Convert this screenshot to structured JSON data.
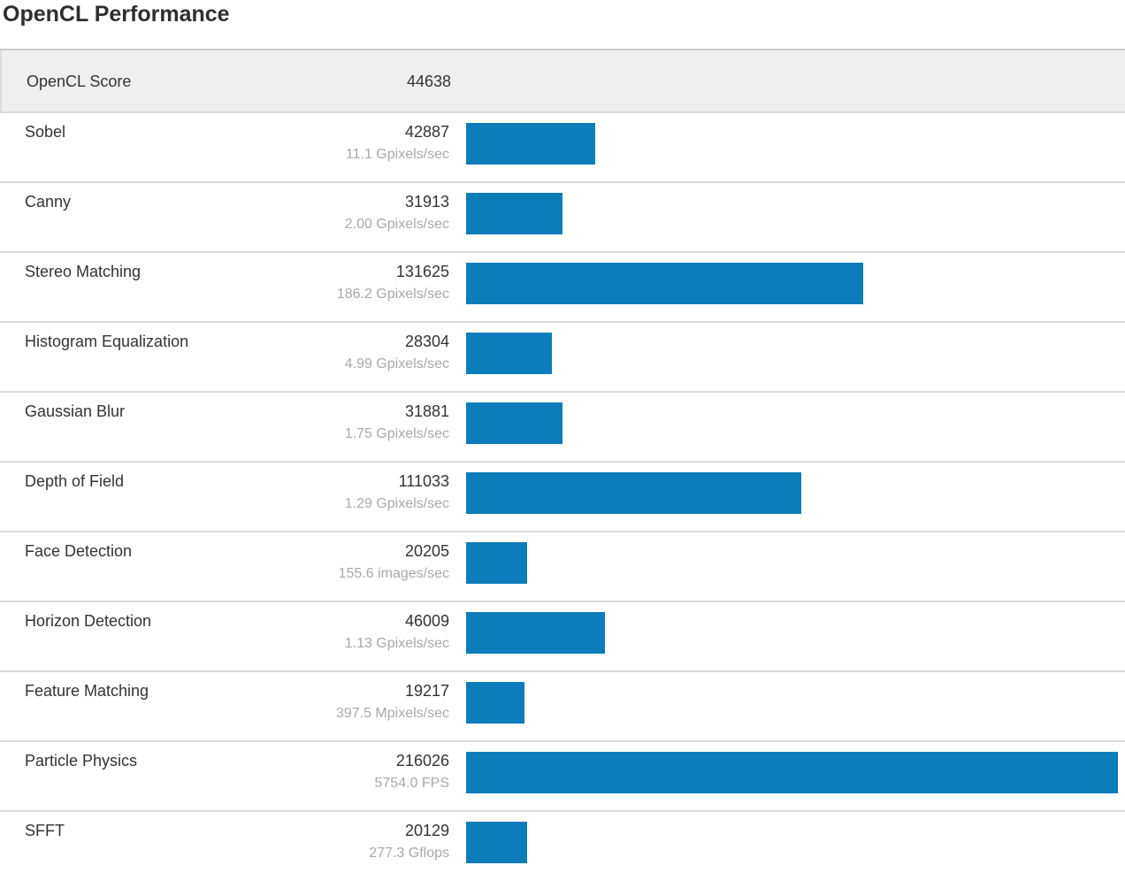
{
  "page": {
    "title": "OpenCL Performance"
  },
  "colors": {
    "bar": "#0c7cba",
    "summary_row_background": "#efefef",
    "rate_text": "#a9a9a9"
  },
  "chart_data": {
    "type": "bar",
    "orientation": "horizontal",
    "title": "OpenCL Performance",
    "xlim": [
      0,
      216026
    ],
    "grid": false,
    "legend": false,
    "bar_color": "#0c7cba",
    "summary_row": {
      "label": "OpenCL Score",
      "score": "44638"
    },
    "categories": [
      "Sobel",
      "Canny",
      "Stereo Matching",
      "Histogram Equalization",
      "Gaussian Blur",
      "Depth of Field",
      "Face Detection",
      "Horizon Detection",
      "Feature Matching",
      "Particle Physics",
      "SFFT"
    ],
    "values": [
      42887,
      31913,
      131625,
      28304,
      31881,
      111033,
      20205,
      46009,
      19217,
      216026,
      20129
    ],
    "rows": [
      {
        "name": "Sobel",
        "score": 42887,
        "rate": "11.1 Gpixels/sec"
      },
      {
        "name": "Canny",
        "score": 31913,
        "rate": "2.00 Gpixels/sec"
      },
      {
        "name": "Stereo Matching",
        "score": 131625,
        "rate": "186.2 Gpixels/sec"
      },
      {
        "name": "Histogram Equalization",
        "score": 28304,
        "rate": "4.99 Gpixels/sec"
      },
      {
        "name": "Gaussian Blur",
        "score": 31881,
        "rate": "1.75 Gpixels/sec"
      },
      {
        "name": "Depth of Field",
        "score": 111033,
        "rate": "1.29 Gpixels/sec"
      },
      {
        "name": "Face Detection",
        "score": 20205,
        "rate": "155.6 images/sec"
      },
      {
        "name": "Horizon Detection",
        "score": 46009,
        "rate": "1.13 Gpixels/sec"
      },
      {
        "name": "Feature Matching",
        "score": 19217,
        "rate": "397.5 Mpixels/sec"
      },
      {
        "name": "Particle Physics",
        "score": 216026,
        "rate": "5754.0 FPS"
      },
      {
        "name": "SFFT",
        "score": 20129,
        "rate": "277.3 Gflops"
      }
    ]
  }
}
